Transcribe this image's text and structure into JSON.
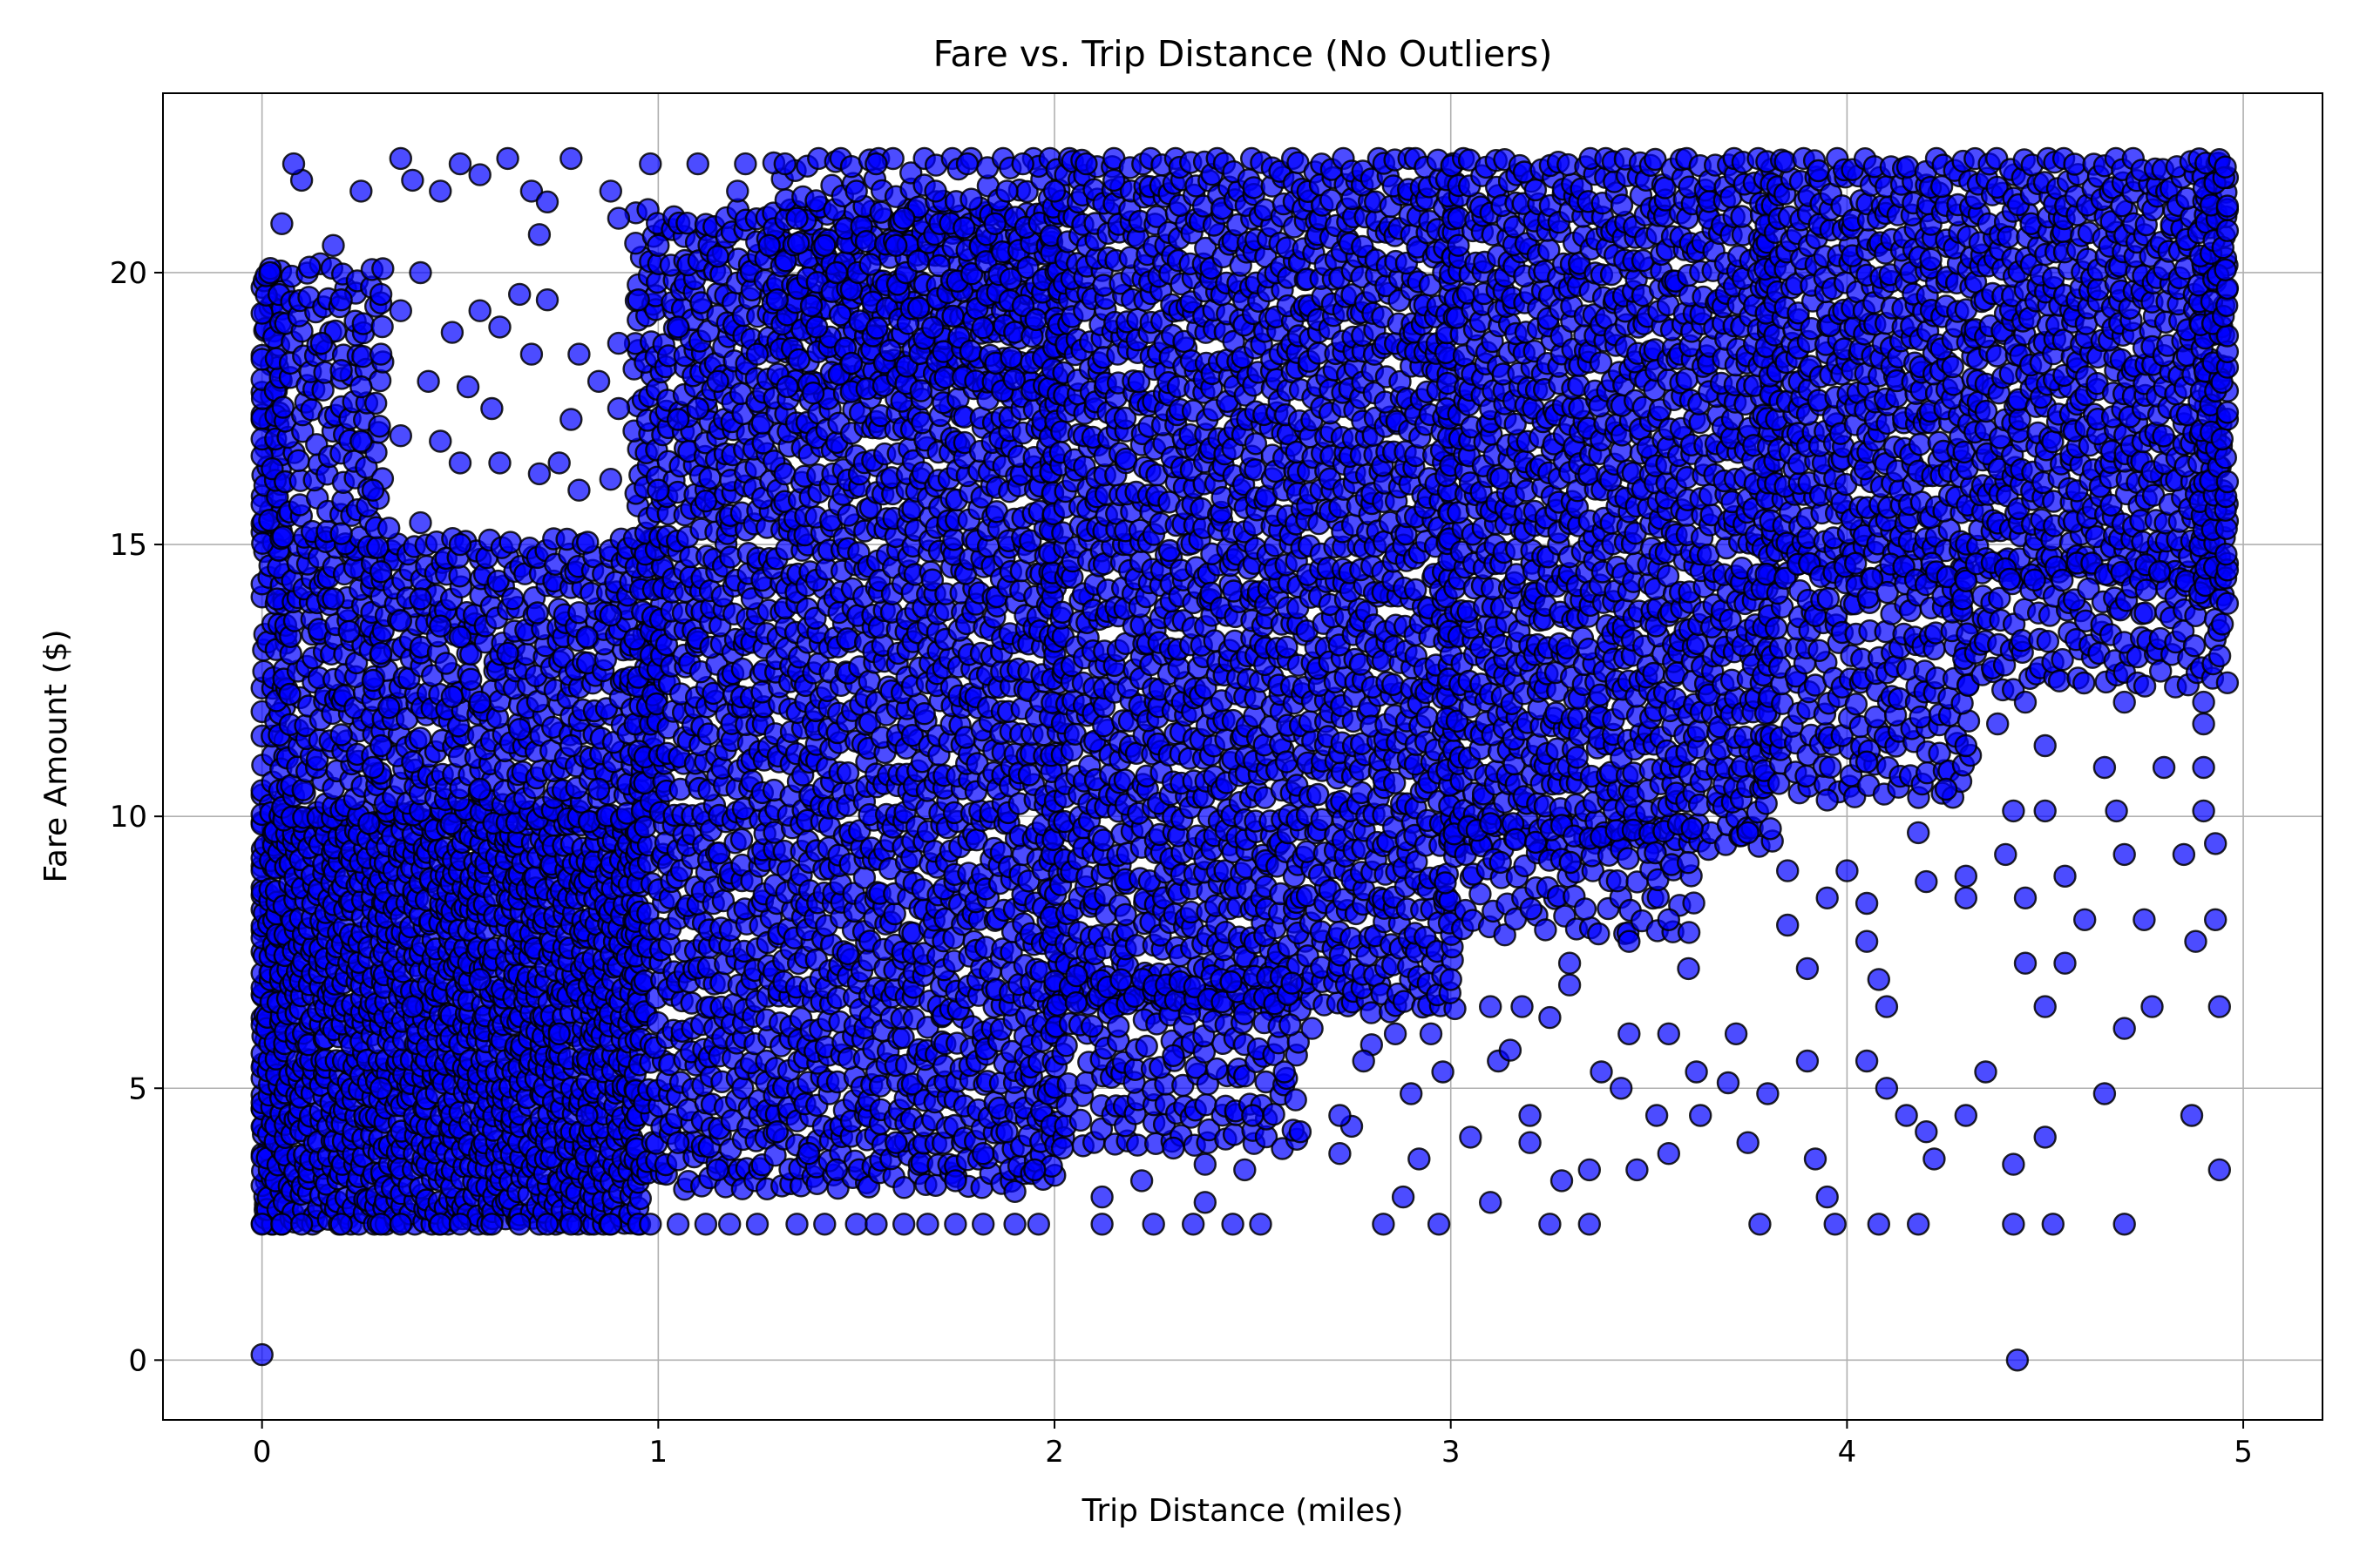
{
  "chart_data": {
    "type": "scatter",
    "title": "Fare vs. Trip Distance (No Outliers)",
    "xlabel": "Trip Distance (miles)",
    "ylabel": "Fare Amount ($)",
    "xlim": [
      -0.25,
      5.2
    ],
    "ylim": [
      -1.1,
      23.3
    ],
    "x_ticks": [
      0,
      1,
      2,
      3,
      4,
      5
    ],
    "x_tick_labels": [
      "0",
      "1",
      "2",
      "3",
      "4",
      "5"
    ],
    "y_ticks": [
      0,
      5,
      10,
      15,
      20
    ],
    "y_tick_labels": [
      "0",
      "5",
      "10",
      "15",
      "20"
    ],
    "grid": true,
    "marker_fill": "#0000ff",
    "marker_edge": "#000000",
    "marker_alpha": 0.7,
    "points": [
      [
        0.0,
        0.1
      ],
      [
        4.43,
        0.0
      ],
      [
        0.0,
        2.5
      ],
      [
        0.05,
        2.5
      ],
      [
        0.1,
        2.5
      ],
      [
        0.2,
        2.5
      ],
      [
        0.3,
        2.5
      ],
      [
        0.35,
        2.5
      ],
      [
        0.45,
        2.5
      ],
      [
        0.5,
        2.5
      ],
      [
        0.58,
        2.5
      ],
      [
        0.65,
        2.5
      ],
      [
        0.72,
        2.5
      ],
      [
        0.78,
        2.5
      ],
      [
        0.88,
        2.5
      ],
      [
        0.95,
        2.5
      ],
      [
        0.98,
        2.5
      ],
      [
        1.05,
        2.5
      ],
      [
        1.12,
        2.5
      ],
      [
        1.18,
        2.5
      ],
      [
        1.25,
        2.5
      ],
      [
        1.35,
        2.5
      ],
      [
        1.42,
        2.5
      ],
      [
        1.5,
        2.5
      ],
      [
        1.55,
        2.5
      ],
      [
        1.62,
        2.5
      ],
      [
        1.68,
        2.5
      ],
      [
        1.75,
        2.5
      ],
      [
        1.82,
        2.5
      ],
      [
        1.9,
        2.5
      ],
      [
        1.96,
        2.5
      ],
      [
        2.12,
        2.5
      ],
      [
        2.25,
        2.5
      ],
      [
        2.35,
        2.5
      ],
      [
        2.45,
        2.5
      ],
      [
        2.52,
        2.5
      ],
      [
        2.83,
        2.5
      ],
      [
        2.97,
        2.5
      ],
      [
        3.25,
        2.5
      ],
      [
        3.35,
        2.5
      ],
      [
        3.78,
        2.5
      ],
      [
        3.97,
        2.5
      ],
      [
        4.08,
        2.5
      ],
      [
        4.18,
        2.5
      ],
      [
        4.42,
        2.5
      ],
      [
        4.52,
        2.5
      ],
      [
        4.7,
        2.5
      ],
      [
        3.35,
        3.5
      ],
      [
        3.47,
        3.5
      ],
      [
        4.42,
        3.6
      ],
      [
        4.94,
        3.5
      ],
      [
        4.22,
        3.7
      ],
      [
        2.3,
        3.9
      ],
      [
        3.2,
        4.0
      ],
      [
        3.75,
        4.0
      ],
      [
        4.5,
        4.1
      ],
      [
        4.2,
        4.2
      ],
      [
        2.62,
        4.2
      ],
      [
        2.75,
        4.3
      ],
      [
        3.63,
        4.5
      ],
      [
        4.15,
        4.5
      ],
      [
        4.3,
        4.5
      ],
      [
        4.87,
        4.5
      ],
      [
        4.65,
        4.9
      ],
      [
        2.9,
        4.9
      ],
      [
        3.43,
        5.0
      ],
      [
        4.1,
        5.0
      ],
      [
        4.05,
        5.5
      ],
      [
        3.12,
        5.5
      ],
      [
        3.7,
        5.1
      ],
      [
        4.35,
        5.3
      ],
      [
        2.3,
        5.6
      ],
      [
        2.8,
        5.8
      ],
      [
        2.95,
        6.0
      ],
      [
        3.55,
        6.0
      ],
      [
        4.7,
        6.1
      ],
      [
        4.5,
        6.5
      ],
      [
        4.77,
        6.5
      ],
      [
        4.94,
        6.5
      ],
      [
        3.18,
        6.5
      ],
      [
        4.1,
        6.5
      ],
      [
        4.45,
        7.3
      ],
      [
        4.08,
        7.0
      ],
      [
        3.0,
        7.0
      ],
      [
        3.9,
        7.2
      ],
      [
        3.6,
        7.2
      ],
      [
        3.3,
        7.3
      ],
      [
        3.45,
        7.7
      ],
      [
        4.55,
        7.3
      ],
      [
        4.88,
        7.7
      ],
      [
        4.05,
        7.7
      ],
      [
        3.85,
        8.0
      ],
      [
        3.55,
        8.1
      ],
      [
        3.95,
        8.5
      ],
      [
        4.05,
        8.4
      ],
      [
        4.3,
        8.5
      ],
      [
        4.6,
        8.1
      ],
      [
        4.93,
        8.1
      ],
      [
        4.75,
        8.1
      ],
      [
        4.45,
        8.5
      ],
      [
        3.85,
        9.0
      ],
      [
        4.0,
        9.0
      ],
      [
        4.2,
        8.8
      ],
      [
        4.3,
        8.9
      ],
      [
        4.55,
        8.9
      ],
      [
        4.85,
        9.3
      ],
      [
        4.7,
        9.3
      ],
      [
        4.4,
        9.3
      ],
      [
        4.93,
        9.5
      ],
      [
        3.75,
        9.7
      ],
      [
        4.18,
        9.7
      ],
      [
        4.42,
        10.1
      ],
      [
        4.5,
        10.1
      ],
      [
        4.68,
        10.1
      ],
      [
        4.9,
        10.1
      ],
      [
        4.25,
        10.5
      ],
      [
        3.95,
        10.3
      ],
      [
        4.8,
        10.9
      ],
      [
        4.65,
        10.9
      ],
      [
        4.9,
        10.9
      ],
      [
        4.3,
        11.3
      ],
      [
        4.5,
        11.3
      ],
      [
        4.05,
        11.0
      ],
      [
        4.38,
        11.7
      ],
      [
        4.9,
        11.7
      ],
      [
        4.7,
        12.1
      ],
      [
        4.45,
        12.1
      ],
      [
        4.9,
        12.1
      ],
      [
        0.02,
        20.0
      ],
      [
        0.05,
        20.9
      ],
      [
        0.1,
        21.7
      ],
      [
        0.08,
        22.0
      ],
      [
        0.12,
        20.1
      ],
      [
        0.18,
        20.5
      ],
      [
        0.25,
        21.5
      ],
      [
        0.35,
        22.1
      ],
      [
        0.38,
        21.7
      ],
      [
        0.45,
        21.5
      ],
      [
        0.5,
        22.0
      ],
      [
        0.55,
        21.8
      ],
      [
        0.62,
        22.1
      ],
      [
        0.68,
        21.5
      ],
      [
        0.72,
        21.3
      ],
      [
        0.78,
        22.1
      ],
      [
        0.98,
        22.0
      ],
      [
        1.1,
        22.0
      ],
      [
        1.22,
        22.0
      ],
      [
        1.32,
        22.0
      ],
      [
        0.7,
        20.7
      ],
      [
        0.88,
        21.5
      ],
      [
        0.9,
        21.0
      ],
      [
        0.4,
        20.0
      ],
      [
        0.2,
        19.5
      ],
      [
        0.3,
        19.6
      ],
      [
        0.55,
        19.3
      ],
      [
        0.65,
        19.6
      ],
      [
        0.72,
        19.5
      ],
      [
        0.3,
        18.5
      ],
      [
        0.42,
        18.0
      ],
      [
        0.52,
        17.9
      ],
      [
        0.58,
        17.5
      ],
      [
        0.25,
        17.9
      ],
      [
        0.35,
        17.0
      ],
      [
        0.45,
        16.9
      ],
      [
        0.5,
        16.5
      ],
      [
        0.6,
        16.5
      ],
      [
        0.28,
        16.0
      ],
      [
        0.4,
        15.4
      ],
      [
        0.32,
        15.3
      ],
      [
        0.5,
        15.0
      ],
      [
        0.2,
        15.2
      ],
      [
        0.25,
        16.9
      ],
      [
        0.3,
        14.5
      ],
      [
        0.4,
        14.0
      ],
      [
        0.22,
        13.4
      ],
      [
        0.3,
        13.0
      ],
      [
        0.35,
        13.6
      ],
      [
        0.18,
        14.0
      ],
      [
        0.45,
        13.5
      ],
      [
        0.5,
        13.3
      ],
      [
        0.62,
        13.0
      ],
      [
        0.82,
        13.3
      ],
      [
        0.88,
        13.7
      ],
      [
        0.28,
        12.5
      ],
      [
        0.32,
        12.0
      ],
      [
        0.48,
        12.2
      ],
      [
        0.55,
        12.1
      ],
      [
        0.2,
        11.5
      ],
      [
        0.3,
        11.3
      ],
      [
        0.28,
        10.9
      ],
      [
        0.38,
        11.0
      ],
      [
        0.65,
        11.6
      ],
      [
        0.78,
        11.3
      ],
      [
        0.85,
        10.5
      ],
      [
        0.55,
        10.5
      ],
      [
        0.15,
        18.7
      ],
      [
        0.2,
        18.2
      ],
      [
        0.35,
        19.3
      ],
      [
        0.48,
        18.9
      ],
      [
        0.6,
        19.0
      ],
      [
        0.68,
        18.5
      ],
      [
        0.8,
        18.5
      ],
      [
        0.85,
        18.0
      ],
      [
        0.9,
        18.7
      ],
      [
        0.78,
        17.3
      ],
      [
        0.7,
        16.3
      ],
      [
        0.8,
        16.0
      ],
      [
        0.75,
        16.5
      ],
      [
        0.88,
        16.2
      ],
      [
        0.9,
        17.5
      ],
      [
        0.95,
        19.5
      ],
      [
        1.0,
        20.5
      ],
      [
        1.05,
        19.0
      ],
      [
        1.15,
        20.3
      ],
      [
        1.2,
        21.5
      ],
      [
        1.28,
        20.5
      ],
      [
        1.35,
        21.0
      ],
      [
        1.42,
        20.5
      ],
      [
        1.5,
        21.5
      ],
      [
        1.55,
        22.0
      ],
      [
        1.62,
        21.0
      ],
      [
        1.7,
        21.5
      ],
      [
        1.78,
        22.0
      ],
      [
        1.85,
        20.9
      ],
      [
        1.92,
        22.0
      ],
      [
        2.0,
        21.5
      ],
      [
        2.08,
        22.0
      ],
      [
        2.15,
        21.7
      ],
      [
        1.88,
        21.5
      ],
      [
        1.3,
        19.5
      ],
      [
        1.4,
        19.0
      ],
      [
        1.45,
        20.0
      ],
      [
        1.6,
        20.5
      ],
      [
        1.25,
        18.5
      ],
      [
        1.1,
        17.5
      ],
      [
        1.15,
        18.0
      ],
      [
        1.05,
        17.3
      ],
      [
        1.0,
        16.0
      ],
      [
        1.12,
        15.8
      ],
      [
        0.3,
        5.0
      ],
      [
        0.38,
        6.5
      ],
      [
        0.55,
        7.0
      ],
      [
        0.75,
        6.0
      ],
      [
        0.82,
        4.5
      ],
      [
        1.05,
        4.0
      ],
      [
        1.15,
        3.5
      ],
      [
        1.3,
        4.2
      ],
      [
        1.38,
        3.8
      ],
      [
        1.45,
        3.5
      ],
      [
        1.6,
        4.0
      ],
      [
        1.75,
        3.3
      ],
      [
        1.82,
        3.8
      ],
      [
        1.88,
        4.2
      ],
      [
        1.95,
        3.5
      ],
      [
        1.9,
        3.1
      ],
      [
        2.02,
        3.9
      ],
      [
        2.12,
        3.0
      ],
      [
        2.22,
        3.3
      ],
      [
        2.38,
        3.6
      ],
      [
        2.48,
        3.5
      ],
      [
        2.38,
        2.9
      ],
      [
        2.5,
        4.5
      ],
      [
        2.58,
        5.3
      ],
      [
        2.65,
        6.1
      ],
      [
        2.72,
        4.5
      ],
      [
        2.78,
        5.5
      ],
      [
        2.86,
        6.0
      ],
      [
        2.88,
        3.0
      ],
      [
        2.92,
        3.7
      ],
      [
        2.98,
        5.3
      ],
      [
        3.05,
        4.1
      ],
      [
        3.1,
        6.5
      ],
      [
        3.15,
        5.7
      ],
      [
        3.2,
        4.5
      ],
      [
        3.25,
        6.3
      ],
      [
        3.3,
        6.9
      ],
      [
        3.38,
        5.3
      ],
      [
        3.45,
        6.0
      ],
      [
        3.52,
        4.5
      ],
      [
        3.62,
        5.3
      ],
      [
        3.72,
        6.0
      ],
      [
        3.8,
        4.9
      ],
      [
        3.9,
        5.5
      ],
      [
        3.95,
        3.0
      ],
      [
        3.92,
        3.7
      ],
      [
        3.55,
        3.8
      ],
      [
        3.1,
        2.9
      ],
      [
        3.28,
        3.3
      ],
      [
        2.72,
        3.8
      ]
    ],
    "regions": [
      {
        "x": [
          0.0,
          0.05
        ],
        "y": [
          2.5,
          20.0
        ],
        "step_y": 0.4,
        "jitter_x": 0.0,
        "cols": 3,
        "rows": 44
      },
      {
        "x": [
          0.0,
          0.95
        ],
        "y": [
          2.5,
          10.0
        ],
        "cols": 46,
        "rows": 30
      },
      {
        "x": [
          0.05,
          1.0
        ],
        "y": [
          10.0,
          15.0
        ],
        "cols": 30,
        "rows": 18
      },
      {
        "x": [
          0.0,
          0.3
        ],
        "y": [
          15.0,
          20.0
        ],
        "cols": 10,
        "rows": 14
      },
      {
        "x": [
          0.95,
          2.0
        ],
        "y": [
          3.3,
          21.0
        ],
        "cols": 40,
        "rows": 50
      },
      {
        "x": [
          1.3,
          2.0
        ],
        "y": [
          18.0,
          22.0
        ],
        "cols": 22,
        "rows": 9
      },
      {
        "x": [
          2.0,
          3.0
        ],
        "y": [
          6.5,
          22.0
        ],
        "cols": 38,
        "rows": 45
      },
      {
        "x": [
          2.0,
          2.6
        ],
        "y": [
          4.0,
          7.0
        ],
        "cols": 18,
        "rows": 9
      },
      {
        "x": [
          3.0,
          3.8
        ],
        "y": [
          9.5,
          22.0
        ],
        "cols": 30,
        "rows": 38
      },
      {
        "x": [
          3.0,
          3.6
        ],
        "y": [
          8.0,
          9.7
        ],
        "cols": 18,
        "rows": 5
      },
      {
        "x": [
          3.8,
          4.95
        ],
        "y": [
          14.5,
          22.0
        ],
        "cols": 42,
        "rows": 24
      },
      {
        "x": [
          3.8,
          4.3
        ],
        "y": [
          10.5,
          14.5
        ],
        "cols": 16,
        "rows": 12
      },
      {
        "x": [
          4.3,
          4.95
        ],
        "y": [
          12.5,
          14.5
        ],
        "cols": 22,
        "rows": 6
      },
      {
        "x": [
          4.9,
          4.96
        ],
        "y": [
          14.0,
          22.0
        ],
        "cols": 3,
        "rows": 26
      }
    ]
  }
}
